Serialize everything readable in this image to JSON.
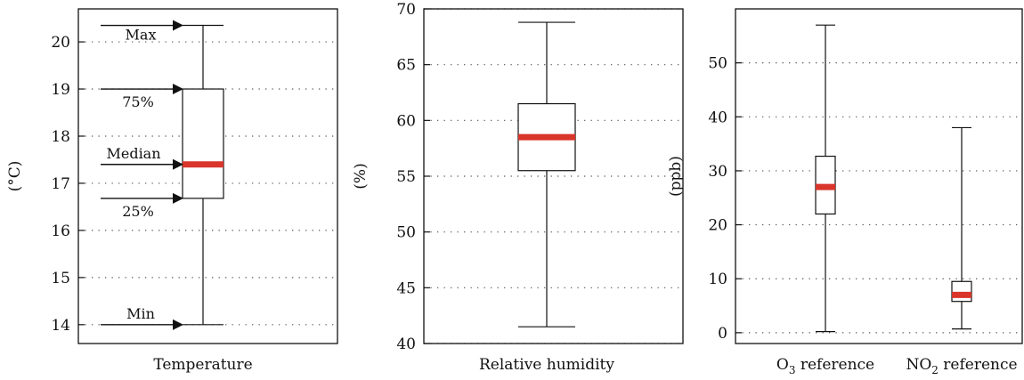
{
  "chart_data": [
    {
      "type": "box",
      "ylabel": "(°C)",
      "ylim": [
        13.6,
        20.7
      ],
      "yticks": [
        14,
        15,
        16,
        17,
        18,
        19,
        20
      ],
      "grid": "y-dotted",
      "boxes": [
        {
          "category": "Temperature",
          "min": 14.0,
          "q1": 16.68,
          "median": 17.4,
          "q3": 19.0,
          "max": 20.35
        }
      ],
      "annotations": [
        "Max",
        "75%",
        "Median",
        "25%",
        "Min"
      ]
    },
    {
      "type": "box",
      "ylabel": "(%)",
      "ylim": [
        40,
        70
      ],
      "yticks": [
        40,
        45,
        50,
        55,
        60,
        65,
        70
      ],
      "grid": "y-dotted",
      "boxes": [
        {
          "category": "Relative humidity",
          "min": 41.5,
          "q1": 55.5,
          "median": 58.5,
          "q3": 61.5,
          "max": 68.8
        }
      ]
    },
    {
      "type": "box",
      "ylabel": "(ppb)",
      "ylim": [
        -2,
        60
      ],
      "yticks": [
        0,
        10,
        20,
        30,
        40,
        50
      ],
      "grid": "y-dotted",
      "boxes": [
        {
          "category": "O3 reference",
          "label_parts": [
            "O",
            "3",
            " reference"
          ],
          "min": 0.2,
          "q1": 22.0,
          "median": 27.0,
          "q3": 32.7,
          "max": 57.0
        },
        {
          "category": "NO2 reference",
          "label_parts": [
            "NO",
            "2",
            " reference"
          ],
          "min": 0.7,
          "q1": 5.8,
          "median": 7.0,
          "q3": 9.5,
          "max": 38.0
        }
      ]
    }
  ],
  "colors": {
    "median": "#d9352a",
    "frame": "#111111",
    "grid": "#555555"
  }
}
